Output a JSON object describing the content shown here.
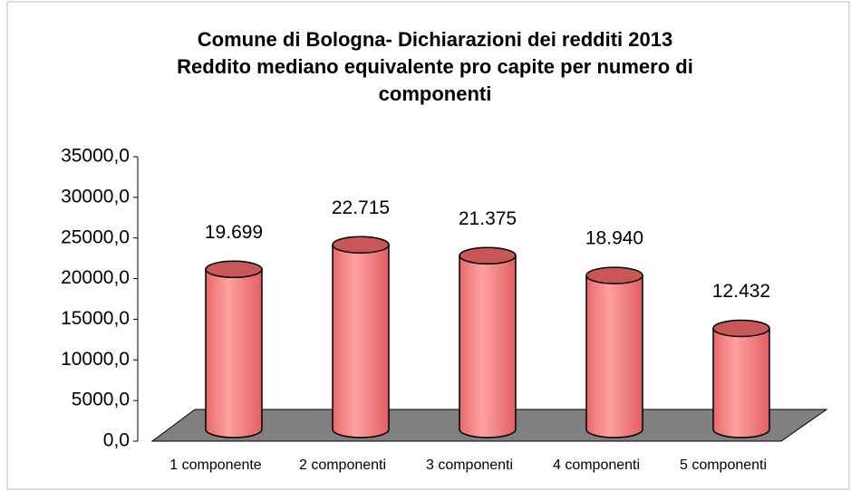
{
  "chart_data": {
    "type": "cylinder",
    "title": [
      "Comune di Bologna- Dichiarazioni dei redditi 2013",
      "Reddito mediano equivalente pro capite per numero di",
      "componenti"
    ],
    "categories": [
      "1 componente",
      "2 componenti",
      "3 componenti",
      "4 componenti",
      "5 componenti"
    ],
    "values": [
      19699,
      22715,
      21375,
      18940,
      12432
    ],
    "value_labels": [
      "19.699",
      "22.715",
      "21.375",
      "18.940",
      "12.432"
    ],
    "color": "#ff8080",
    "ylim": [
      0,
      35000
    ],
    "yticks": [
      {
        "value": 0,
        "label": "0,0"
      },
      {
        "value": 5000,
        "label": "5000,0"
      },
      {
        "value": 10000,
        "label": "10000,0"
      },
      {
        "value": 15000,
        "label": "15000,0"
      },
      {
        "value": 20000,
        "label": "20000,0"
      },
      {
        "value": 25000,
        "label": "25000,0"
      },
      {
        "value": 30000,
        "label": "30000,0"
      },
      {
        "value": 35000,
        "label": "35000,0"
      }
    ]
  }
}
